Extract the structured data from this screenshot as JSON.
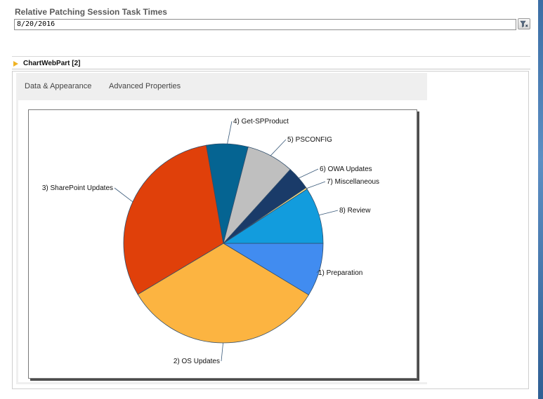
{
  "filter": {
    "label": "Relative Patching Session Task Times",
    "value": "8/20/2016",
    "button_icon": "filter-icon"
  },
  "webpart": {
    "title": "ChartWebPart [2]",
    "tabs": [
      "Data & Appearance",
      "Advanced Properties"
    ]
  },
  "colors": {
    "accent_arrow": "#f0b323"
  },
  "chart_data": {
    "type": "pie",
    "title": "",
    "categories": [
      "1) Preparation",
      "2) OS Updates",
      "3) SharePoint Updates",
      "4) Get-SPProduct",
      "5) PSCONFIG",
      "6) OWA Updates",
      "7) Miscellaneous",
      "8) Review"
    ],
    "values": [
      9,
      34,
      32,
      7,
      8,
      4,
      0.3,
      9.5
    ],
    "colors": [
      "#418cf0",
      "#fcb441",
      "#e0400a",
      "#056492",
      "#bfbfbf",
      "#1a3b69",
      "#ffe382",
      "#129cdd"
    ],
    "legend": "none",
    "start_angle_deg": 0
  }
}
